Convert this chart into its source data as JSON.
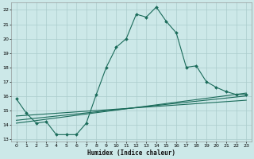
{
  "xlabel": "Humidex (Indice chaleur)",
  "background_color": "#cce8e8",
  "grid_color": "#aacccc",
  "line_color": "#1a6b5a",
  "xlim": [
    -0.5,
    23.5
  ],
  "ylim": [
    12.8,
    22.5
  ],
  "yticks": [
    13,
    14,
    15,
    16,
    17,
    18,
    19,
    20,
    21,
    22
  ],
  "xticks": [
    0,
    1,
    2,
    3,
    4,
    5,
    6,
    7,
    8,
    9,
    10,
    11,
    12,
    13,
    14,
    15,
    16,
    17,
    18,
    19,
    20,
    21,
    22,
    23
  ],
  "main_x": [
    0,
    1,
    2,
    3,
    4,
    5,
    6,
    7,
    8,
    9,
    10,
    11,
    12,
    13,
    14,
    15,
    16,
    17,
    18,
    19,
    20,
    21,
    22,
    23
  ],
  "main_y": [
    15.8,
    14.8,
    14.1,
    14.2,
    13.3,
    13.3,
    13.3,
    14.1,
    16.1,
    18.0,
    19.4,
    20.0,
    21.7,
    21.5,
    22.2,
    21.2,
    20.4,
    18.0,
    18.1,
    17.0,
    16.6,
    16.3,
    16.1,
    16.1
  ],
  "line1_x": [
    0,
    23
  ],
  "line1_y": [
    14.1,
    16.2
  ],
  "line2_x": [
    0,
    23
  ],
  "line2_y": [
    14.3,
    16.0
  ],
  "line3_x": [
    0,
    23
  ],
  "line3_y": [
    14.6,
    15.7
  ]
}
